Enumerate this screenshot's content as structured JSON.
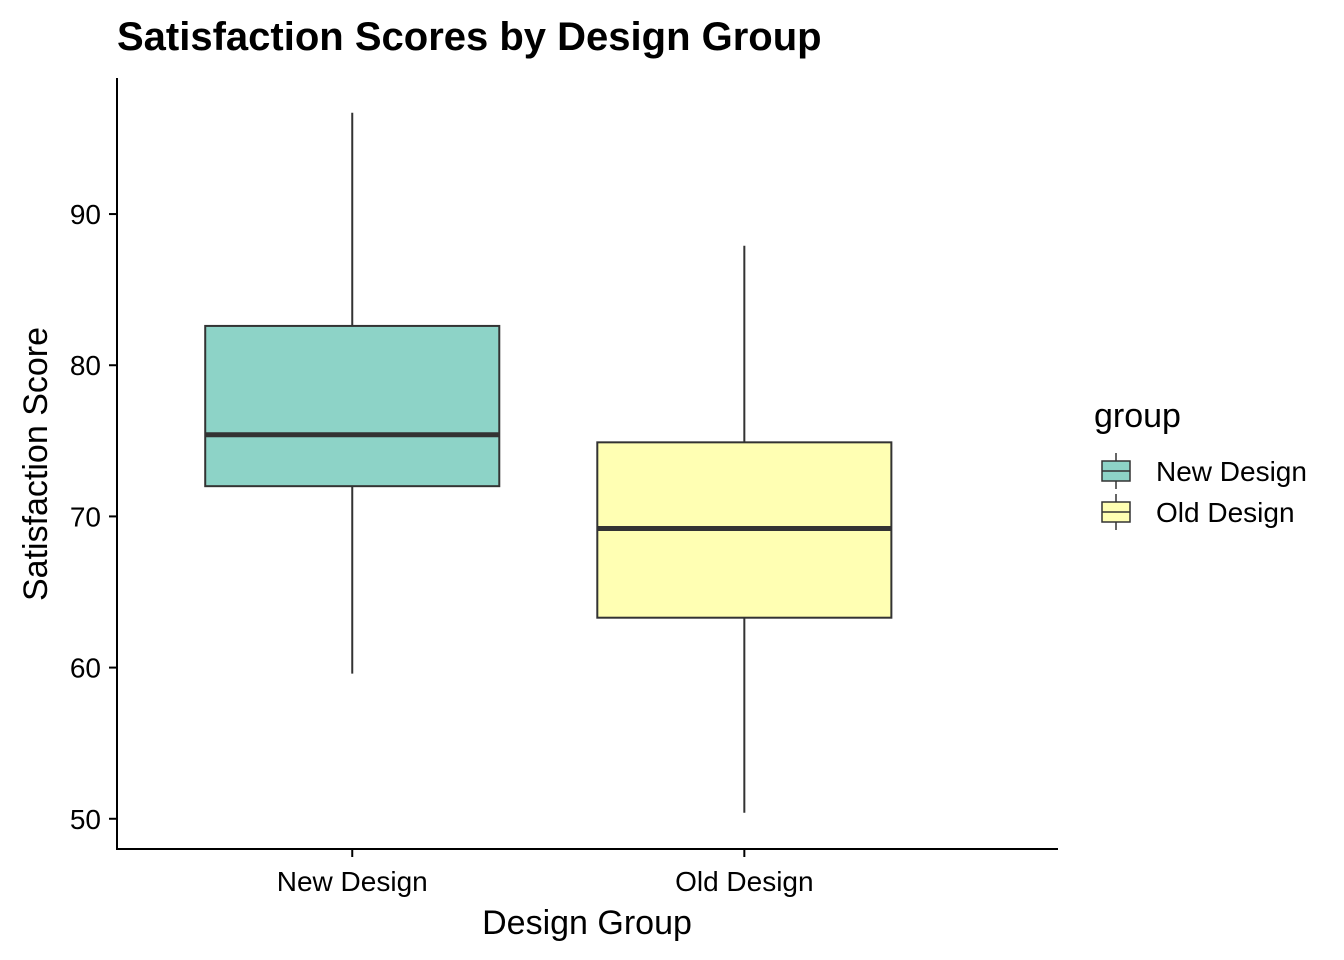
{
  "chart_data": {
    "type": "boxplot",
    "title": "Satisfaction Scores by Design Group",
    "xlabel": "Design Group",
    "ylabel": "Satisfaction Score",
    "ylim": [
      48,
      99
    ],
    "yticks": [
      50,
      60,
      70,
      80,
      90
    ],
    "grid": false,
    "legend": {
      "title": "group",
      "position": "right",
      "entries": [
        "New Design",
        "Old Design"
      ]
    },
    "categories": [
      "New Design",
      "Old Design"
    ],
    "boxes": [
      {
        "name": "New Design",
        "color": "#8DD3C7",
        "min": 59.6,
        "q1": 72.0,
        "median": 75.4,
        "q3": 82.6,
        "max": 96.7
      },
      {
        "name": "Old Design",
        "color": "#FFFFB3",
        "min": 50.4,
        "q1": 63.3,
        "median": 69.2,
        "q3": 74.9,
        "max": 87.9
      }
    ]
  }
}
